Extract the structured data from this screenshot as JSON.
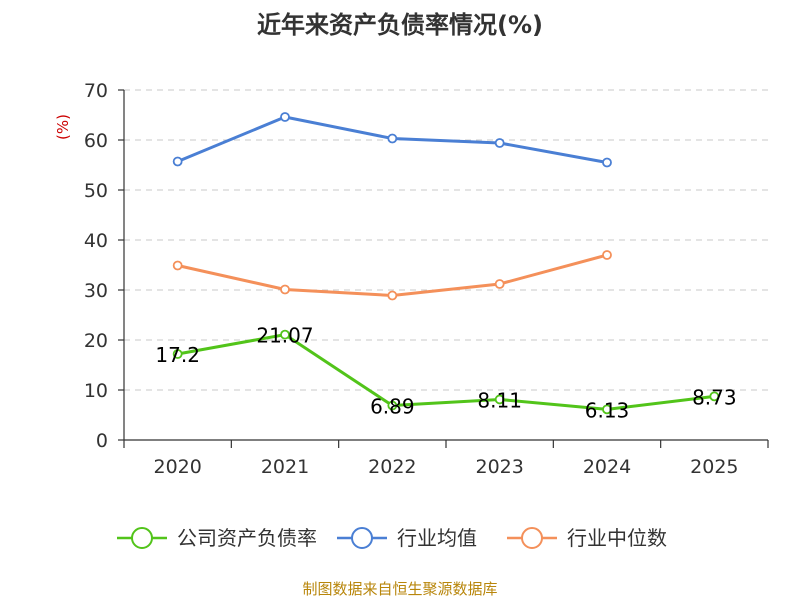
{
  "chart_data": {
    "type": "line",
    "title": "近年来资产负债率情况(%)",
    "ylabel": "(%)",
    "xlabel": "",
    "categories": [
      "2020",
      "2021",
      "2022",
      "2023",
      "2024",
      "2025"
    ],
    "ylim": [
      0,
      70
    ],
    "yticks": [
      0,
      10,
      20,
      30,
      40,
      50,
      60,
      70
    ],
    "grid": true,
    "legend_position": "bottom",
    "series": [
      {
        "name": "公司资产负债率",
        "color": "#52c41a",
        "values": [
          17.2,
          21.07,
          6.89,
          8.11,
          6.13,
          8.73
        ],
        "labels": [
          "17.2",
          "21.07",
          "6.89",
          "8.11",
          "6.13",
          "8.73"
        ]
      },
      {
        "name": "行业均值",
        "color": "#4a7fd4",
        "values": [
          55.7,
          64.6,
          60.3,
          59.4,
          55.5,
          null
        ]
      },
      {
        "name": "行业中位数",
        "color": "#f4905a",
        "values": [
          34.9,
          30.1,
          28.9,
          31.2,
          37.0,
          null
        ]
      }
    ]
  },
  "source": "制图数据来自恒生聚源数据库"
}
